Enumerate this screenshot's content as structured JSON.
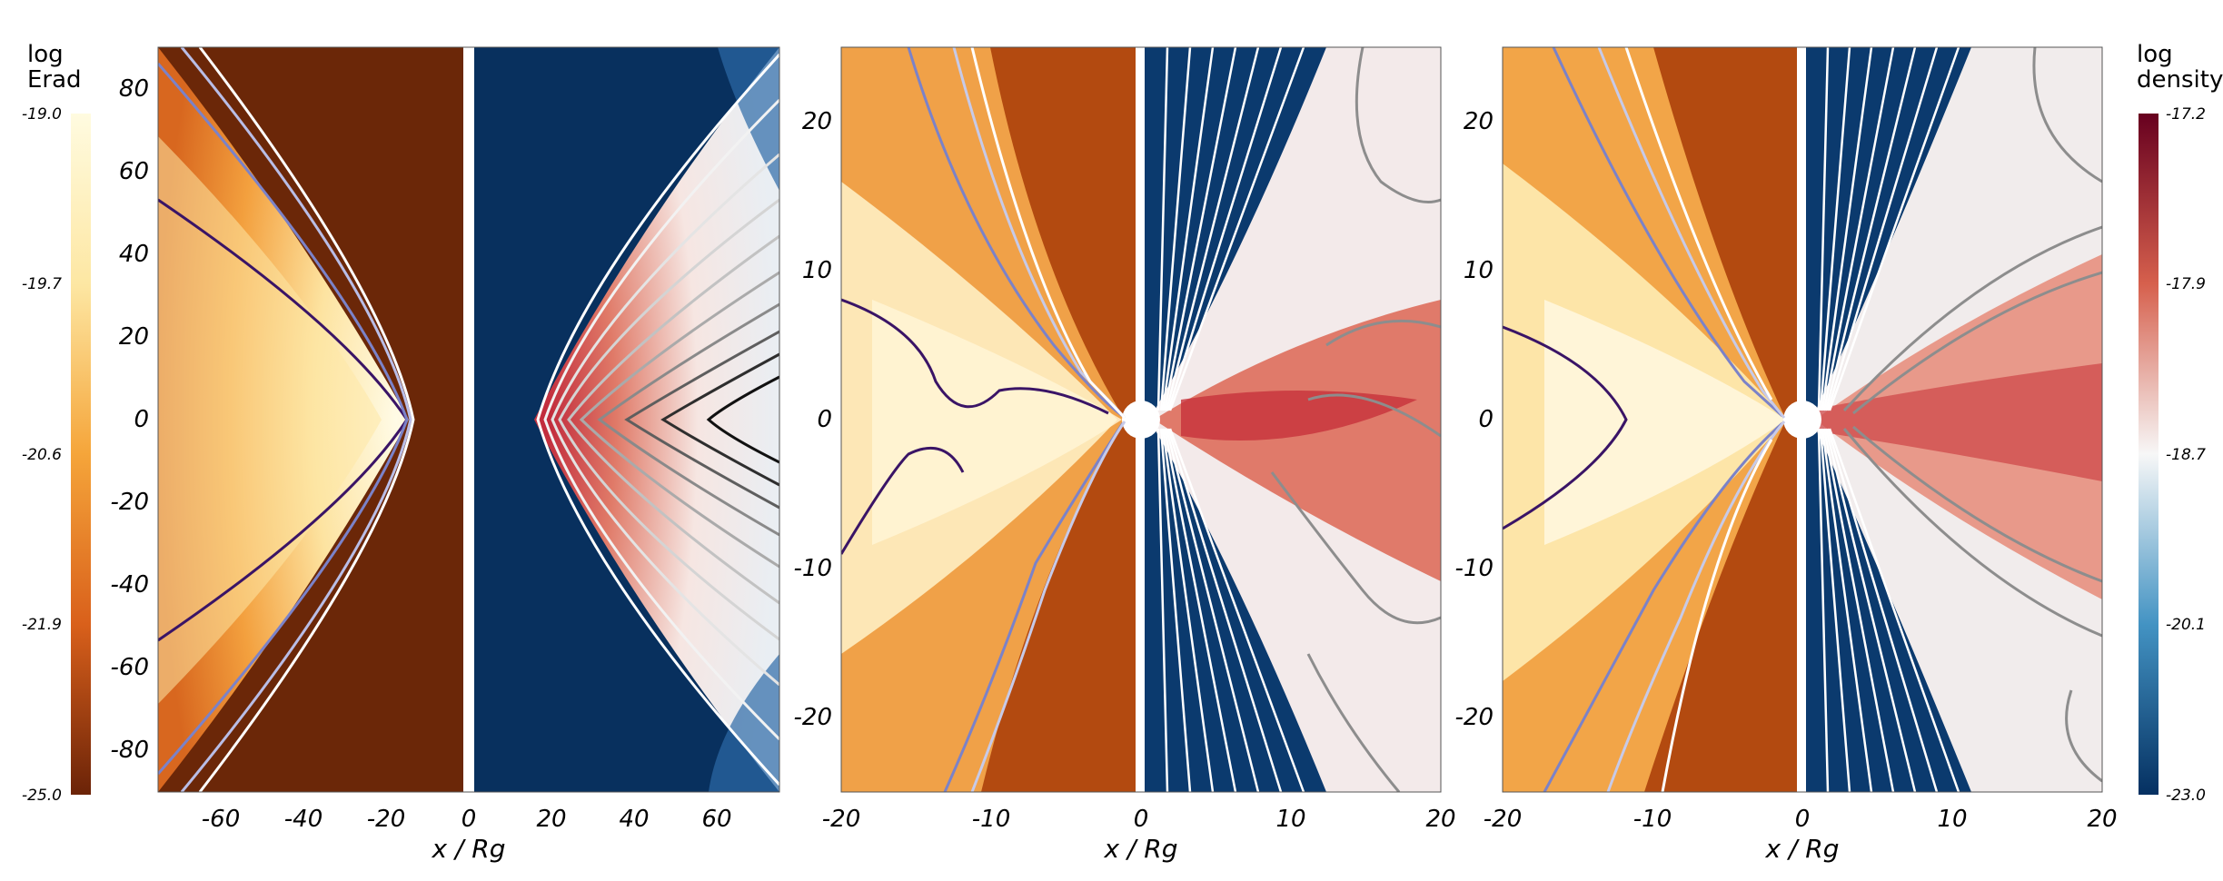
{
  "colorbars": {
    "left": {
      "title_line1": "log",
      "title_line2": "Erad",
      "ticks": [
        "-19.0",
        "-19.7",
        "-20.6",
        "-21.9",
        "-25.0"
      ],
      "colors": [
        "#fffbe0",
        "#fde7a3",
        "#f5a53a",
        "#d9601b",
        "#6b2308"
      ]
    },
    "right": {
      "title_line1": "log",
      "title_line2": "density",
      "ticks": [
        "-17.2",
        "-17.9",
        "-18.7",
        "-20.1",
        "-23.0"
      ],
      "colors": [
        "#67001f",
        "#d6604d",
        "#f7f7f7",
        "#4393c3",
        "#053061"
      ]
    }
  },
  "chart_data": [
    {
      "type": "heatmap",
      "panel": "left",
      "xlabel": "x / Rg",
      "xlim": [
        -75,
        75
      ],
      "ylim": [
        -90,
        90
      ],
      "xticks": [
        "-60",
        "-40",
        "-20",
        "0",
        "20",
        "40",
        "60"
      ],
      "yticks": [
        "80",
        "60",
        "40",
        "20",
        "0",
        "-20",
        "-40",
        "-60",
        "-80"
      ],
      "left_half": "log Erad",
      "right_half": "log density"
    },
    {
      "type": "heatmap",
      "panel": "middle",
      "xlabel": "x / Rg",
      "xlim": [
        -20,
        20
      ],
      "ylim": [
        -25,
        25
      ],
      "xticks": [
        "-20",
        "-10",
        "0",
        "10",
        "20"
      ],
      "yticks": [
        "20",
        "10",
        "0",
        "-10",
        "-20"
      ],
      "left_half": "log Erad",
      "right_half": "log density"
    },
    {
      "type": "heatmap",
      "panel": "right",
      "xlabel": "x / Rg",
      "xlim": [
        -20,
        20
      ],
      "ylim": [
        -25,
        25
      ],
      "xticks": [
        "-20",
        "-10",
        "0",
        "10",
        "20"
      ],
      "yticks": [
        "20",
        "10",
        "0",
        "-10",
        "-20"
      ],
      "left_half": "log Erad",
      "right_half": "log density"
    }
  ]
}
